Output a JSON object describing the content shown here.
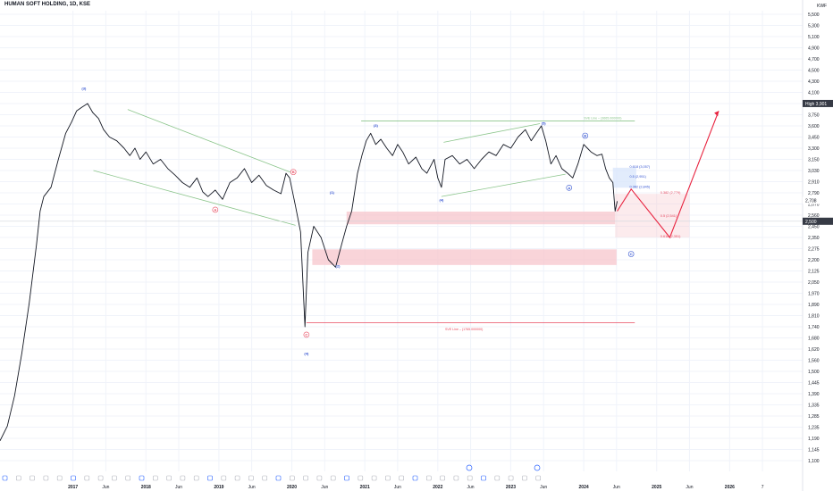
{
  "header": {
    "symbol": "HUMAN SOFT HOLDING, 1D, KSE",
    "currency": "KWF"
  },
  "colors": {
    "price": "#131722",
    "grid": "#f0f3fa",
    "axis_text": "#131722",
    "channel": "#8bc58b",
    "wave_red": "#e84a5f",
    "wave_blue": "#3454d1",
    "zone_red": "#f7c6cc",
    "zone_blue": "#d6e4fb",
    "projection": "#e8223e",
    "badge_blue": "#2962ff",
    "badge_gray": "#b2b5be",
    "badge_dark": "#363a45"
  },
  "chart_data": {
    "type": "line",
    "y_axis": {
      "ticks": [
        "5,500",
        "5,300",
        "5,100",
        "4,900",
        "4,700",
        "4,500",
        "4,300",
        "4,100",
        "3,900",
        "3,750",
        "3,600",
        "3,450",
        "3,300",
        "3,150",
        "3,030",
        "2,910",
        "2,790",
        "2,670",
        "2,560",
        "2,450",
        "2,350",
        "2,275",
        "2,200",
        "2,125",
        "2,050",
        "1,970",
        "1,890",
        "1,810",
        "1,740",
        "1,680",
        "1,620",
        "1,560",
        "1,500",
        "1,445",
        "1,390",
        "1,335",
        "1,285",
        "1,235",
        "1,190",
        "1,145",
        "1,100"
      ],
      "ylim": [
        1100,
        5500
      ]
    },
    "x_axis": {
      "ticks": [
        "2017",
        "Jun",
        "2018",
        "Jun",
        "2019",
        "Jun",
        "2020",
        "Jun",
        "2021",
        "Jun",
        "2022",
        "Jun",
        "2023",
        "Jun",
        "2024",
        "Jun",
        "2025",
        "Jun",
        "2026",
        "7"
      ],
      "xlim": [
        2016.0,
        2027.0
      ]
    },
    "price_labels": {
      "high": {
        "label": "High",
        "value": "3,901"
      },
      "last": {
        "value": "2,708"
      },
      "current": {
        "value": "2,500"
      }
    },
    "price_series": [
      [
        2016.0,
        1180
      ],
      [
        2016.1,
        1240
      ],
      [
        2016.2,
        1380
      ],
      [
        2016.3,
        1600
      ],
      [
        2016.4,
        1900
      ],
      [
        2016.5,
        2300
      ],
      [
        2016.55,
        2600
      ],
      [
        2016.6,
        2750
      ],
      [
        2016.7,
        2850
      ],
      [
        2016.8,
        3150
      ],
      [
        2016.9,
        3500
      ],
      [
        2016.98,
        3650
      ],
      [
        2017.05,
        3800
      ],
      [
        2017.12,
        3850
      ],
      [
        2017.2,
        3900
      ],
      [
        2017.27,
        3780
      ],
      [
        2017.35,
        3700
      ],
      [
        2017.42,
        3550
      ],
      [
        2017.5,
        3450
      ],
      [
        2017.6,
        3400
      ],
      [
        2017.7,
        3300
      ],
      [
        2017.78,
        3200
      ],
      [
        2017.85,
        3300
      ],
      [
        2017.92,
        3150
      ],
      [
        2018.0,
        3250
      ],
      [
        2018.1,
        3100
      ],
      [
        2018.2,
        3150
      ],
      [
        2018.3,
        3050
      ],
      [
        2018.4,
        2980
      ],
      [
        2018.5,
        2900
      ],
      [
        2018.6,
        2850
      ],
      [
        2018.7,
        2950
      ],
      [
        2018.78,
        2800
      ],
      [
        2018.85,
        2750
      ],
      [
        2018.95,
        2820
      ],
      [
        2019.05,
        2720
      ],
      [
        2019.15,
        2900
      ],
      [
        2019.25,
        2950
      ],
      [
        2019.35,
        3050
      ],
      [
        2019.45,
        2900
      ],
      [
        2019.55,
        2980
      ],
      [
        2019.65,
        2870
      ],
      [
        2019.75,
        2820
      ],
      [
        2019.85,
        2780
      ],
      [
        2019.92,
        3000
      ],
      [
        2019.97,
        2950
      ],
      [
        2020.05,
        2650
      ],
      [
        2020.12,
        2400
      ],
      [
        2020.18,
        1740
      ],
      [
        2020.22,
        2250
      ],
      [
        2020.3,
        2450
      ],
      [
        2020.4,
        2350
      ],
      [
        2020.5,
        2200
      ],
      [
        2020.6,
        2150
      ],
      [
        2020.68,
        2300
      ],
      [
        2020.75,
        2450
      ],
      [
        2020.82,
        2600
      ],
      [
        2020.9,
        3000
      ],
      [
        2020.96,
        3200
      ],
      [
        2021.02,
        3400
      ],
      [
        2021.08,
        3500
      ],
      [
        2021.15,
        3350
      ],
      [
        2021.22,
        3420
      ],
      [
        2021.3,
        3300
      ],
      [
        2021.38,
        3200
      ],
      [
        2021.45,
        3350
      ],
      [
        2021.52,
        3250
      ],
      [
        2021.6,
        3100
      ],
      [
        2021.7,
        3180
      ],
      [
        2021.78,
        3050
      ],
      [
        2021.85,
        3000
      ],
      [
        2021.95,
        3150
      ],
      [
        2022.0,
        2950
      ],
      [
        2022.05,
        2850
      ],
      [
        2022.1,
        3150
      ],
      [
        2022.2,
        3200
      ],
      [
        2022.3,
        3100
      ],
      [
        2022.4,
        3150
      ],
      [
        2022.5,
        3050
      ],
      [
        2022.6,
        3150
      ],
      [
        2022.7,
        3250
      ],
      [
        2022.8,
        3200
      ],
      [
        2022.9,
        3350
      ],
      [
        2023.0,
        3300
      ],
      [
        2023.1,
        3450
      ],
      [
        2023.2,
        3550
      ],
      [
        2023.28,
        3400
      ],
      [
        2023.35,
        3500
      ],
      [
        2023.42,
        3600
      ],
      [
        2023.48,
        3400
      ],
      [
        2023.55,
        3100
      ],
      [
        2023.62,
        3200
      ],
      [
        2023.7,
        3050
      ],
      [
        2023.78,
        3000
      ],
      [
        2023.85,
        2950
      ],
      [
        2023.92,
        3100
      ],
      [
        2024.0,
        3350
      ],
      [
        2024.05,
        3300
      ],
      [
        2024.1,
        3250
      ],
      [
        2024.18,
        3200
      ],
      [
        2024.25,
        3220
      ],
      [
        2024.3,
        3050
      ],
      [
        2024.35,
        2950
      ],
      [
        2024.4,
        2900
      ],
      [
        2024.43,
        2600
      ],
      [
        2024.46,
        2700
      ]
    ],
    "projection_path": [
      [
        2024.46,
        2600
      ],
      [
        2024.65,
        2830
      ],
      [
        2025.18,
        2350
      ],
      [
        2025.85,
        3800
      ]
    ],
    "wave_labels": [
      {
        "text": "(3)",
        "x": 2017.15,
        "y": 4150,
        "color": "wave_blue"
      },
      {
        "text": "A",
        "x": 2018.95,
        "y": 2600,
        "color": "wave_red",
        "circled": true
      },
      {
        "text": "B",
        "x": 2020.02,
        "y": 3000,
        "color": "wave_red",
        "circled": true
      },
      {
        "text": "C",
        "x": 2020.2,
        "y": 1690,
        "color": "wave_red",
        "circled": true
      },
      {
        "text": "(4)",
        "x": 2020.2,
        "y": 1590,
        "color": "wave_blue"
      },
      {
        "text": "(1)",
        "x": 2020.55,
        "y": 2780,
        "color": "wave_blue"
      },
      {
        "text": "(2)",
        "x": 2020.63,
        "y": 2150,
        "color": "wave_blue"
      },
      {
        "text": "(3)",
        "x": 2021.15,
        "y": 3590,
        "color": "wave_blue"
      },
      {
        "text": "(4)",
        "x": 2022.05,
        "y": 2700,
        "color": "wave_blue"
      },
      {
        "text": "(5)",
        "x": 2023.45,
        "y": 3620,
        "color": "wave_blue"
      },
      {
        "text": "A",
        "x": 2023.8,
        "y": 2830,
        "color": "wave_blue",
        "circled": true
      },
      {
        "text": "B",
        "x": 2024.02,
        "y": 3450,
        "color": "wave_blue",
        "circled": true
      },
      {
        "text": "C",
        "x": 2024.65,
        "y": 2230,
        "color": "wave_blue",
        "circled": true
      }
    ],
    "fib_labels": [
      {
        "text": "0.618 (3,057)",
        "x": 2024.63,
        "y": 3057,
        "color": "wave_blue"
      },
      {
        "text": "0.5 (2,951)",
        "x": 2024.63,
        "y": 2951,
        "color": "wave_blue"
      },
      {
        "text": "0.382 (2,845)",
        "x": 2024.63,
        "y": 2845,
        "color": "wave_blue"
      },
      {
        "text": "0.382 (2,779)",
        "x": 2025.05,
        "y": 2779,
        "color": "wave_red"
      },
      {
        "text": "0.5 (2,541)",
        "x": 2025.05,
        "y": 2541,
        "color": "wave_red"
      },
      {
        "text": "0.618 (2,351)",
        "x": 2025.05,
        "y": 2351,
        "color": "wave_red"
      }
    ],
    "line_labels": {
      "green_top": "SVE Line – (3665.000000)",
      "red_bottom": "SVE Line – (1765.000000)"
    }
  }
}
